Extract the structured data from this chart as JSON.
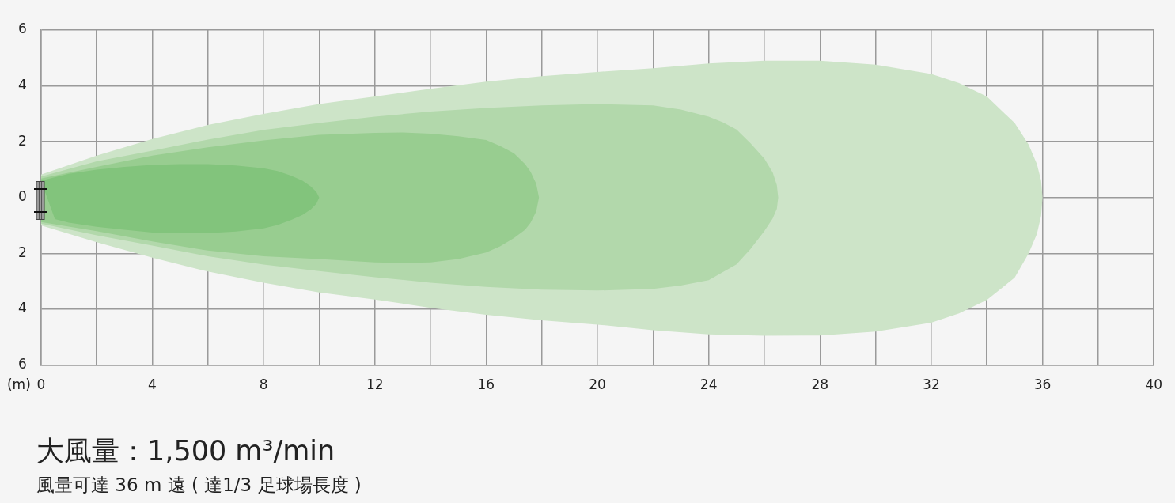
{
  "chart_data": {
    "type": "area",
    "title": "大風量：1,500 m³/min",
    "subtitle": "風量可達 36 m 遠 ( 達1/3 足球場長度 )",
    "xlabel": "(m)",
    "xlim": [
      0,
      40
    ],
    "xticks": [
      0,
      {
        "value": 2,
        "label": null
      },
      4,
      {
        "value": 6,
        "label": null
      },
      8,
      {
        "value": 10,
        "label": null
      },
      12,
      {
        "value": 14,
        "label": null
      },
      16,
      {
        "value": 18,
        "label": null
      },
      20,
      {
        "value": 22,
        "label": null
      },
      24,
      {
        "value": 26,
        "label": null
      },
      28,
      {
        "value": 30,
        "label": null
      },
      32,
      {
        "value": 34,
        "label": null
      },
      36,
      {
        "value": 38,
        "label": null
      },
      40
    ],
    "ylim": [
      -6,
      6
    ],
    "yticks": [
      {
        "value": -6,
        "label": "6"
      },
      {
        "value": -4,
        "label": "4"
      },
      {
        "value": -2,
        "label": "2"
      },
      0,
      2,
      4,
      6
    ],
    "grid": true,
    "series": [
      {
        "color": "#cde4c8",
        "x": [
          0,
          2,
          4,
          6,
          8,
          10,
          12,
          14,
          16,
          18,
          20,
          22,
          24,
          26,
          28,
          30,
          32,
          33,
          34,
          35,
          35.5,
          35.8,
          35.95,
          36,
          35.95,
          35.8,
          35.5,
          35,
          34,
          33,
          32,
          30,
          28,
          26,
          24,
          22,
          20,
          18,
          16,
          14,
          12,
          10,
          8,
          6,
          4,
          2,
          0
        ],
        "values": [
          0.82,
          1.5,
          2.1,
          2.6,
          3.0,
          3.35,
          3.62,
          3.9,
          4.15,
          4.35,
          4.5,
          4.63,
          4.8,
          4.9,
          4.9,
          4.76,
          4.43,
          4.1,
          3.62,
          2.67,
          1.9,
          1.2,
          0.6,
          0,
          -0.65,
          -1.3,
          -2.0,
          -2.87,
          -3.67,
          -4.15,
          -4.48,
          -4.8,
          -4.94,
          -4.95,
          -4.9,
          -4.75,
          -4.55,
          -4.4,
          -4.2,
          -3.95,
          -3.65,
          -3.4,
          -3.05,
          -2.65,
          -2.15,
          -1.6,
          -1.0
        ]
      },
      {
        "color": "#b2d8ab",
        "x": [
          0,
          2,
          4,
          6,
          8,
          10,
          12,
          14,
          16,
          18,
          20,
          22,
          23,
          24,
          24.5,
          25,
          25.5,
          26,
          26.3,
          26.45,
          26.5,
          26.45,
          26.3,
          26,
          25.5,
          25,
          24,
          23,
          22,
          20,
          18,
          16,
          14,
          12,
          10,
          8,
          6,
          4,
          2,
          0
        ],
        "values": [
          0.75,
          1.3,
          1.68,
          2.08,
          2.42,
          2.67,
          2.9,
          3.08,
          3.21,
          3.3,
          3.35,
          3.3,
          3.15,
          2.9,
          2.7,
          2.44,
          1.95,
          1.4,
          0.9,
          0.45,
          0,
          -0.4,
          -0.75,
          -1.2,
          -1.85,
          -2.39,
          -2.96,
          -3.15,
          -3.27,
          -3.33,
          -3.3,
          -3.2,
          -3.05,
          -2.85,
          -2.63,
          -2.4,
          -2.1,
          -1.72,
          -1.35,
          -0.93
        ]
      },
      {
        "color": "#98cd90",
        "x": [
          0,
          2,
          4,
          6,
          8,
          10,
          12,
          13,
          14,
          15,
          16,
          16.5,
          17,
          17.4,
          17.6,
          17.8,
          17.9,
          17.8,
          17.6,
          17.4,
          17,
          16.5,
          16,
          15,
          14,
          13,
          12,
          10,
          8,
          6,
          4,
          2,
          0
        ],
        "values": [
          0.68,
          1.1,
          1.5,
          1.8,
          2.05,
          2.25,
          2.32,
          2.33,
          2.29,
          2.2,
          2.06,
          1.85,
          1.59,
          1.2,
          0.92,
          0.5,
          0,
          -0.5,
          -0.9,
          -1.15,
          -1.45,
          -1.75,
          -1.97,
          -2.2,
          -2.32,
          -2.34,
          -2.32,
          -2.2,
          -2.1,
          -1.9,
          -1.57,
          -1.2,
          -0.88
        ]
      },
      {
        "color": "#82c47c",
        "x": [
          0,
          1,
          2,
          3,
          4,
          5,
          6,
          7,
          8,
          8.5,
          9,
          9.4,
          9.7,
          9.9,
          10,
          9.9,
          9.7,
          9.4,
          9,
          8.5,
          8,
          7,
          6,
          5,
          4,
          3,
          2,
          1,
          0.5
        ],
        "values": [
          0.6,
          0.85,
          1.0,
          1.1,
          1.17,
          1.2,
          1.2,
          1.15,
          1.05,
          0.95,
          0.78,
          0.6,
          0.4,
          0.2,
          0,
          -0.22,
          -0.42,
          -0.62,
          -0.8,
          -0.98,
          -1.1,
          -1.22,
          -1.27,
          -1.28,
          -1.25,
          -1.15,
          -1.05,
          -0.9,
          -0.77
        ]
      }
    ]
  }
}
